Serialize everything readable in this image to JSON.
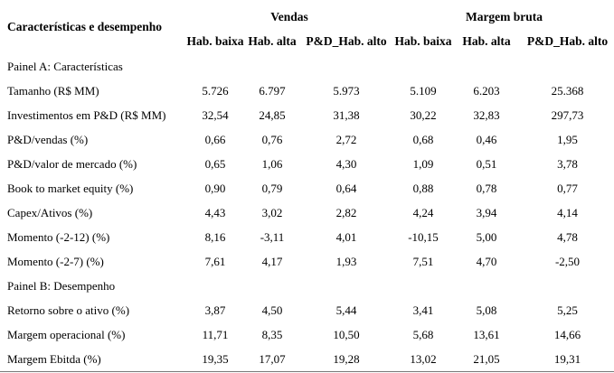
{
  "table": {
    "corner_header": "Características e desempenho",
    "column_groups": [
      {
        "label": "Vendas",
        "span": 3
      },
      {
        "label": "Margem bruta",
        "span": 3
      }
    ],
    "subheaders": [
      "Hab. baixa",
      "Hab. alta",
      "P&D_Hab. alto",
      "Hab. baixa",
      "Hab. alta",
      "P&D_Hab. alto"
    ],
    "sections": [
      {
        "title": "Painel A: Características",
        "rows": [
          {
            "label": "Tamanho (R$ MM)",
            "values": [
              "5.726",
              "6.797",
              "5.973",
              "5.109",
              "6.203",
              "25.368"
            ]
          },
          {
            "label": "Investimentos em P&D (R$ MM)",
            "values": [
              "32,54",
              "24,85",
              "31,38",
              "30,22",
              "32,83",
              "297,73"
            ]
          },
          {
            "label": "P&D/vendas (%)",
            "values": [
              "0,66",
              "0,76",
              "2,72",
              "0,68",
              "0,46",
              "1,95"
            ]
          },
          {
            "label": "P&D/valor de mercado (%)",
            "values": [
              "0,65",
              "1,06",
              "4,30",
              "1,09",
              "0,51",
              "3,78"
            ]
          },
          {
            "label": "Book to market equity (%)",
            "values": [
              "0,90",
              "0,79",
              "0,64",
              "0,88",
              "0,78",
              "0,77"
            ]
          },
          {
            "label": "Capex/Ativos (%)",
            "values": [
              "4,43",
              "3,02",
              "2,82",
              "4,24",
              "3,94",
              "4,14"
            ]
          },
          {
            "label": "Momento (-2-12) (%)",
            "values": [
              "8,16",
              "-3,11",
              "4,01",
              "-10,15",
              "5,00",
              "4,78"
            ]
          },
          {
            "label": "Momento (-2-7) (%)",
            "values": [
              "7,61",
              "4,17",
              "1,93",
              "7,51",
              "4,70",
              "-2,50"
            ]
          }
        ]
      },
      {
        "title": "Painel B: Desempenho",
        "rows": [
          {
            "label": "Retorno sobre o ativo (%)",
            "values": [
              "3,87",
              "4,50",
              "5,44",
              "3,41",
              "5,08",
              "5,25"
            ]
          },
          {
            "label": "Margem operacional (%)",
            "values": [
              "11,71",
              "8,35",
              "10,50",
              "5,68",
              "13,61",
              "14,66"
            ]
          },
          {
            "label": "Margem Ebitda (%)",
            "values": [
              "19,35",
              "17,07",
              "19,28",
              "13,02",
              "21,05",
              "19,31"
            ]
          }
        ]
      }
    ]
  }
}
